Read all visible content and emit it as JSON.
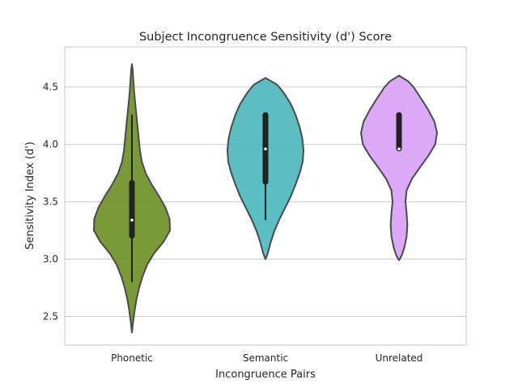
{
  "chart_data": {
    "type": "violin",
    "title": "Subject Incongruence Sensitivity (d') Score",
    "xlabel": "Incongruence Pairs",
    "ylabel": "Sensitivity Index (d')",
    "ylim": [
      2.25,
      4.85
    ],
    "yticks": [
      2.5,
      3.0,
      3.5,
      4.0,
      4.5
    ],
    "ytick_labels": [
      "2.5",
      "3.0",
      "3.5",
      "4.0",
      "4.5"
    ],
    "grid": true,
    "categories": [
      "Phonetic",
      "Semantic",
      "Unrelated"
    ],
    "series": [
      {
        "category": "Phonetic",
        "color": "#6b8e23",
        "median": 3.34,
        "q1": 3.2,
        "q3": 3.67,
        "whisker_low": 2.8,
        "whisker_high": 4.26,
        "density": {
          "y": [
            2.36,
            2.45,
            2.55,
            2.65,
            2.75,
            2.85,
            2.95,
            3.05,
            3.15,
            3.25,
            3.35,
            3.45,
            3.55,
            3.65,
            3.75,
            3.85,
            3.95,
            4.05,
            4.15,
            4.25,
            4.35,
            4.45,
            4.55,
            4.65,
            4.7
          ],
          "width": [
            0.0,
            0.03,
            0.07,
            0.12,
            0.19,
            0.28,
            0.4,
            0.58,
            0.83,
            1.0,
            0.99,
            0.88,
            0.71,
            0.52,
            0.36,
            0.26,
            0.21,
            0.18,
            0.15,
            0.12,
            0.09,
            0.06,
            0.04,
            0.02,
            0.0
          ]
        }
      },
      {
        "category": "Semantic",
        "color": "#4ab7bd",
        "median": 3.96,
        "q1": 3.67,
        "q3": 4.26,
        "whisker_low": 3.34,
        "whisker_high": 4.26,
        "density": {
          "y": [
            3.0,
            3.05,
            3.15,
            3.25,
            3.35,
            3.45,
            3.55,
            3.65,
            3.75,
            3.85,
            3.95,
            4.05,
            4.15,
            4.25,
            4.35,
            4.45,
            4.52,
            4.58
          ],
          "width": [
            0.0,
            0.06,
            0.14,
            0.24,
            0.37,
            0.52,
            0.67,
            0.79,
            0.9,
            0.98,
            1.0,
            0.97,
            0.9,
            0.8,
            0.67,
            0.48,
            0.31,
            0.0
          ]
        }
      },
      {
        "category": "Unrelated",
        "color": "#d8a0f5",
        "median": 3.96,
        "q1": 3.96,
        "q3": 4.26,
        "whisker_low": 3.96,
        "whisker_high": 4.26,
        "density": {
          "y": [
            2.99,
            3.03,
            3.1,
            3.2,
            3.3,
            3.4,
            3.5,
            3.6,
            3.7,
            3.8,
            3.9,
            4.0,
            4.1,
            4.2,
            4.3,
            4.4,
            4.5,
            4.55,
            4.6
          ],
          "width": [
            0.0,
            0.07,
            0.14,
            0.2,
            0.22,
            0.2,
            0.17,
            0.2,
            0.34,
            0.55,
            0.77,
            0.95,
            1.0,
            0.93,
            0.77,
            0.58,
            0.38,
            0.24,
            0.0
          ]
        }
      }
    ]
  }
}
